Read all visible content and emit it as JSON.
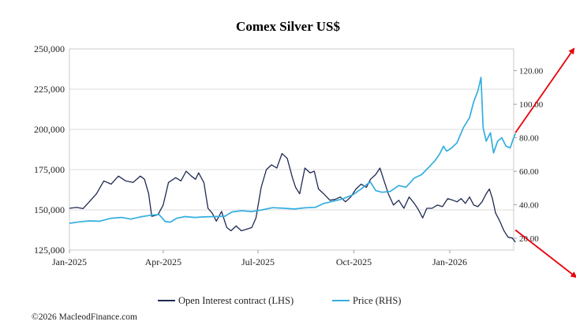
{
  "chart_data": {
    "type": "line",
    "title": "Comex Silver US$",
    "xlabel": "",
    "ylabel": "",
    "x_start": "2025-01-01",
    "x_end": "2026-03-05",
    "x_tick_labels": [
      "Jan-2025",
      "Apr-2025",
      "Jul-2025",
      "Oct-2025",
      "Jan-2026"
    ],
    "x_tick_dates": [
      "2025-01-01",
      "2025-04-01",
      "2025-07-01",
      "2025-10-01",
      "2026-01-01"
    ],
    "y_left": {
      "lim": [
        125000,
        250000
      ],
      "ticks": [
        125000,
        150000,
        175000,
        200000,
        225000,
        250000
      ],
      "tick_labels": [
        "125,000",
        "150,000",
        "175,000",
        "200,000",
        "225,000",
        "250,000"
      ]
    },
    "y_right": {
      "lim": [
        13,
        133
      ],
      "ticks": [
        20,
        40,
        60,
        80,
        100,
        120
      ],
      "tick_labels": [
        "20.00",
        "40.00",
        "60.00",
        "80.00",
        "100.00",
        "120.00"
      ]
    },
    "grid": true,
    "legend_placement": "bottom",
    "series": [
      {
        "name": "Open Interest contract (LHS)",
        "axis": "left",
        "color": "#1f2a52",
        "points": [
          [
            "2025-01-01",
            151000
          ],
          [
            "2025-01-08",
            151500
          ],
          [
            "2025-01-14",
            150800
          ],
          [
            "2025-01-20",
            155000
          ],
          [
            "2025-01-27",
            160000
          ],
          [
            "2025-02-03",
            168000
          ],
          [
            "2025-02-10",
            166000
          ],
          [
            "2025-02-17",
            171000
          ],
          [
            "2025-02-24",
            168000
          ],
          [
            "2025-03-03",
            167000
          ],
          [
            "2025-03-10",
            171000
          ],
          [
            "2025-03-14",
            169000
          ],
          [
            "2025-03-18",
            160000
          ],
          [
            "2025-03-21",
            146000
          ],
          [
            "2025-03-27",
            147000
          ],
          [
            "2025-04-01",
            153000
          ],
          [
            "2025-04-06",
            167000
          ],
          [
            "2025-04-13",
            170000
          ],
          [
            "2025-04-18",
            168000
          ],
          [
            "2025-04-23",
            174000
          ],
          [
            "2025-04-28",
            171000
          ],
          [
            "2025-05-02",
            169000
          ],
          [
            "2025-05-05",
            173000
          ],
          [
            "2025-05-10",
            167000
          ],
          [
            "2025-05-14",
            151000
          ],
          [
            "2025-05-18",
            148000
          ],
          [
            "2025-05-22",
            143000
          ],
          [
            "2025-05-27",
            149000
          ],
          [
            "2025-06-01",
            139000
          ],
          [
            "2025-06-05",
            137000
          ],
          [
            "2025-06-10",
            140000
          ],
          [
            "2025-06-15",
            137000
          ],
          [
            "2025-06-20",
            138000
          ],
          [
            "2025-06-25",
            139000
          ],
          [
            "2025-06-29",
            145000
          ],
          [
            "2025-07-04",
            164000
          ],
          [
            "2025-07-09",
            175000
          ],
          [
            "2025-07-14",
            178000
          ],
          [
            "2025-07-19",
            176000
          ],
          [
            "2025-07-24",
            185000
          ],
          [
            "2025-07-29",
            182000
          ],
          [
            "2025-08-03",
            170000
          ],
          [
            "2025-08-06",
            164000
          ],
          [
            "2025-08-10",
            160000
          ],
          [
            "2025-08-15",
            176000
          ],
          [
            "2025-08-20",
            173000
          ],
          [
            "2025-08-24",
            174000
          ],
          [
            "2025-08-28",
            163000
          ],
          [
            "2025-09-02",
            160000
          ],
          [
            "2025-09-08",
            156000
          ],
          [
            "2025-09-13",
            156500
          ],
          [
            "2025-09-18",
            158000
          ],
          [
            "2025-09-23",
            155000
          ],
          [
            "2025-09-28",
            158000
          ],
          [
            "2025-10-03",
            163000
          ],
          [
            "2025-10-08",
            166000
          ],
          [
            "2025-10-13",
            164000
          ],
          [
            "2025-10-17",
            169000
          ],
          [
            "2025-10-22",
            172000
          ],
          [
            "2025-10-26",
            176000
          ],
          [
            "2025-10-30",
            168000
          ],
          [
            "2025-11-03",
            160000
          ],
          [
            "2025-11-08",
            153000
          ],
          [
            "2025-11-13",
            156000
          ],
          [
            "2025-11-18",
            151000
          ],
          [
            "2025-11-23",
            158000
          ],
          [
            "2025-11-28",
            154000
          ],
          [
            "2025-12-02",
            150000
          ],
          [
            "2025-12-06",
            145000
          ],
          [
            "2025-12-10",
            151000
          ],
          [
            "2025-12-15",
            151000
          ],
          [
            "2025-12-20",
            153000
          ],
          [
            "2025-12-25",
            152000
          ],
          [
            "2025-12-30",
            157000
          ],
          [
            "2026-01-04",
            156000
          ],
          [
            "2026-01-08",
            155000
          ],
          [
            "2026-01-12",
            157000
          ],
          [
            "2026-01-16",
            154000
          ],
          [
            "2026-01-20",
            158000
          ],
          [
            "2026-01-24",
            153000
          ],
          [
            "2026-01-28",
            152000
          ],
          [
            "2026-02-01",
            155000
          ],
          [
            "2026-02-05",
            160000
          ],
          [
            "2026-02-08",
            163000
          ],
          [
            "2026-02-11",
            157000
          ],
          [
            "2026-02-14",
            148000
          ],
          [
            "2026-02-18",
            143000
          ],
          [
            "2026-02-22",
            137000
          ],
          [
            "2026-02-26",
            133000
          ],
          [
            "2026-03-02",
            132500
          ],
          [
            "2026-03-05",
            130000
          ]
        ]
      },
      {
        "name": "Price (RHS)",
        "axis": "right",
        "color": "#34aee0",
        "points": [
          [
            "2025-01-01",
            29.0
          ],
          [
            "2025-01-10",
            29.8
          ],
          [
            "2025-01-20",
            30.4
          ],
          [
            "2025-01-30",
            30.2
          ],
          [
            "2025-02-10",
            32.0
          ],
          [
            "2025-02-20",
            32.5
          ],
          [
            "2025-03-01",
            31.5
          ],
          [
            "2025-03-10",
            32.8
          ],
          [
            "2025-03-20",
            33.8
          ],
          [
            "2025-03-28",
            34.2
          ],
          [
            "2025-04-03",
            30.0
          ],
          [
            "2025-04-08",
            29.7
          ],
          [
            "2025-04-14",
            32.0
          ],
          [
            "2025-04-22",
            33.0
          ],
          [
            "2025-05-01",
            32.5
          ],
          [
            "2025-05-10",
            32.8
          ],
          [
            "2025-05-20",
            33.0
          ],
          [
            "2025-05-30",
            33.2
          ],
          [
            "2025-06-06",
            35.8
          ],
          [
            "2025-06-15",
            36.5
          ],
          [
            "2025-06-25",
            36.0
          ],
          [
            "2025-07-05",
            37.0
          ],
          [
            "2025-07-15",
            38.3
          ],
          [
            "2025-07-25",
            38.0
          ],
          [
            "2025-08-05",
            37.5
          ],
          [
            "2025-08-15",
            38.2
          ],
          [
            "2025-08-25",
            38.5
          ],
          [
            "2025-09-02",
            40.8
          ],
          [
            "2025-09-10",
            42.0
          ],
          [
            "2025-09-20",
            43.5
          ],
          [
            "2025-09-30",
            46.0
          ],
          [
            "2025-10-08",
            49.5
          ],
          [
            "2025-10-14",
            52.5
          ],
          [
            "2025-10-17",
            53.5
          ],
          [
            "2025-10-22",
            48.5
          ],
          [
            "2025-10-28",
            47.5
          ],
          [
            "2025-11-05",
            48.0
          ],
          [
            "2025-11-13",
            51.5
          ],
          [
            "2025-11-20",
            50.5
          ],
          [
            "2025-11-28",
            56.0
          ],
          [
            "2025-12-05",
            58.0
          ],
          [
            "2025-12-12",
            62.5
          ],
          [
            "2025-12-18",
            66.5
          ],
          [
            "2025-12-22",
            70.0
          ],
          [
            "2025-12-26",
            75.0
          ],
          [
            "2025-12-29",
            72.0
          ],
          [
            "2026-01-02",
            73.5
          ],
          [
            "2026-01-08",
            77.0
          ],
          [
            "2026-01-14",
            86.0
          ],
          [
            "2026-01-20",
            92.0
          ],
          [
            "2026-01-24",
            101.5
          ],
          [
            "2026-01-28",
            108.0
          ],
          [
            "2026-01-31",
            116.0
          ],
          [
            "2026-02-02",
            86.0
          ],
          [
            "2026-02-05",
            78.0
          ],
          [
            "2026-02-09",
            83.0
          ],
          [
            "2026-02-12",
            71.0
          ],
          [
            "2026-02-16",
            78.0
          ],
          [
            "2026-02-20",
            80.0
          ],
          [
            "2026-02-24",
            75.0
          ],
          [
            "2026-02-28",
            74.0
          ],
          [
            "2026-03-03",
            79.5
          ],
          [
            "2026-03-05",
            82.5
          ]
        ]
      }
    ],
    "annotations": [
      {
        "type": "arrow",
        "color": "#e8000b",
        "from": [
          "2026-03-05",
          83.0
        ],
        "to": [
          "2026-04-30",
          133.0
        ],
        "axis": "right"
      },
      {
        "type": "arrow",
        "color": "#e8000b",
        "from": [
          "2026-03-05",
          25.0
        ],
        "to": [
          "2026-05-02",
          -3.0
        ],
        "axis": "right"
      }
    ]
  },
  "legend": [
    "Open Interest contract (LHS)",
    "Price (RHS)"
  ],
  "credit": "©2026 MacleodFinance.com"
}
